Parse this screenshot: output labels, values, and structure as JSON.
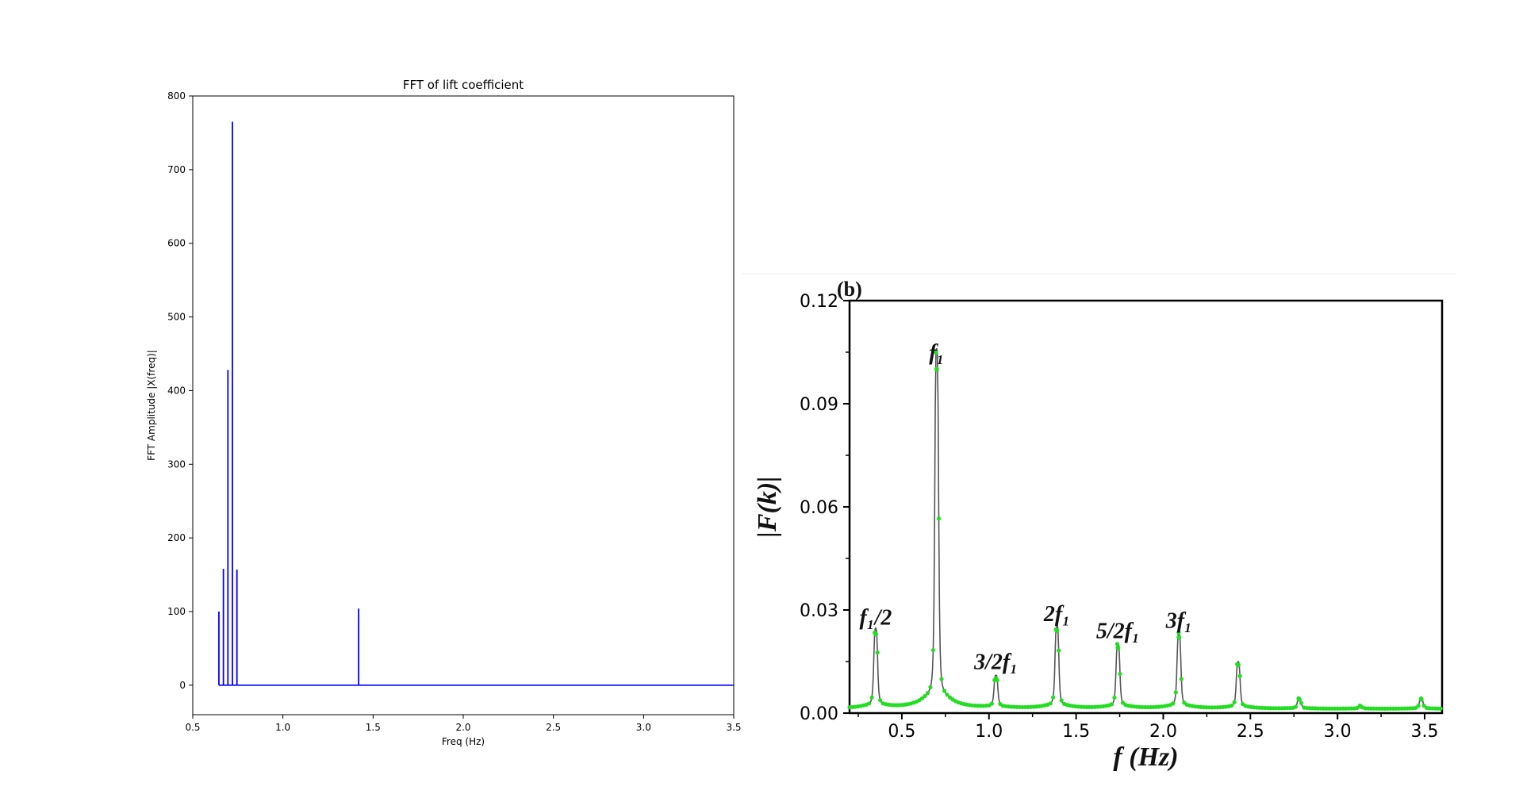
{
  "chart_data": [
    {
      "type": "bar",
      "subtype": "stem",
      "title": "FFT of lift coefficient",
      "xlabel": "Freq (Hz)",
      "ylabel": "FFT Amplitude |X(freq)|",
      "xlim": [
        0.5,
        3.5
      ],
      "ylim": [
        -40,
        800
      ],
      "xticks": [
        "0.5",
        "1.0",
        "1.5",
        "2.0",
        "2.5",
        "3.0",
        "3.5"
      ],
      "yticks": [
        "0",
        "100",
        "200",
        "300",
        "400",
        "500",
        "600",
        "700",
        "800"
      ],
      "series": [
        {
          "name": "FFT amplitude",
          "color": "#0000ff",
          "x": [
            0.645,
            0.67,
            0.695,
            0.72,
            0.745,
            1.42
          ],
          "values": [
            100,
            158,
            428,
            765,
            157,
            104
          ]
        }
      ]
    },
    {
      "type": "line",
      "panel_label": "(b)",
      "xlabel": "f (Hz)",
      "ylabel": "|F(k)|",
      "xlim": [
        0.2,
        3.6
      ],
      "ylim": [
        0,
        0.12
      ],
      "xticks": [
        "0.5",
        "1.0",
        "1.5",
        "2.0",
        "2.5",
        "3.0",
        "3.5"
      ],
      "yticks": [
        "0.00",
        "0.03",
        "0.06",
        "0.09",
        "0.12"
      ],
      "series": [
        {
          "name": "|F(k)|",
          "line_color": "#555555",
          "marker_color": "#22dd22",
          "peaks": [
            {
              "f": 0.35,
              "amp": 0.023
            },
            {
              "f": 0.7,
              "amp": 0.1
            },
            {
              "f": 1.04,
              "amp": 0.01
            },
            {
              "f": 1.39,
              "amp": 0.024
            },
            {
              "f": 1.74,
              "amp": 0.019
            },
            {
              "f": 2.09,
              "amp": 0.022
            },
            {
              "f": 2.43,
              "amp": 0.014
            },
            {
              "f": 2.78,
              "amp": 0.004
            },
            {
              "f": 3.13,
              "amp": 0.002
            },
            {
              "f": 3.48,
              "amp": 0.004
            }
          ]
        }
      ],
      "annotations": [
        {
          "label": "f₁/2",
          "f": 0.35,
          "amp": 0.023
        },
        {
          "label": "f₁",
          "f": 0.7,
          "amp": 0.1
        },
        {
          "label": "3/2f₁",
          "f": 1.04,
          "amp": 0.01
        },
        {
          "label": "2f₁",
          "f": 1.39,
          "amp": 0.024
        },
        {
          "label": "5/2f₁",
          "f": 1.74,
          "amp": 0.019
        },
        {
          "label": "3f₁",
          "f": 2.09,
          "amp": 0.022
        }
      ]
    }
  ]
}
